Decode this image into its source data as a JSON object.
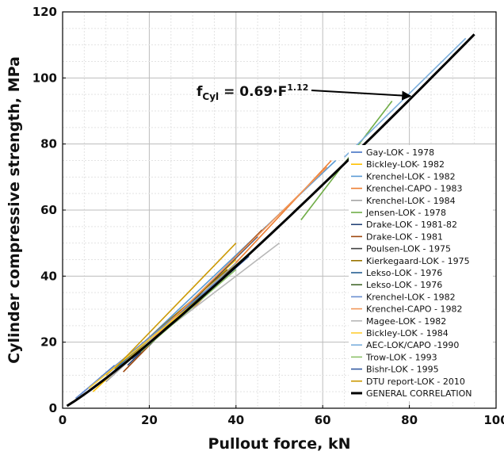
{
  "chart_data": {
    "type": "line",
    "xlabel": "Pullout force, kN",
    "ylabel": "Cylinder compressive strength, MPa",
    "xlim": [
      0,
      100
    ],
    "ylim": [
      0,
      120
    ],
    "xticks": [
      "0",
      "20",
      "40",
      "60",
      "80",
      "100"
    ],
    "yticks": [
      "0",
      "20",
      "40",
      "60",
      "80",
      "100",
      "120"
    ],
    "grid": true,
    "legend_position": "right",
    "annotation": {
      "prefix": "f",
      "subscript": "Cyl",
      "middle": " = 0.69·F",
      "superscript": "1.12",
      "arrow_to": [
        81,
        95
      ]
    },
    "series": [
      {
        "name": "Gay-LOK - 1978",
        "color": "#4472c4",
        "x": [
          4,
          12
        ],
        "y": [
          4,
          13
        ]
      },
      {
        "name": "Bickley-LOK- 1982",
        "color": "#ffc000",
        "x": [
          7,
          40
        ],
        "y": [
          5,
          45
        ]
      },
      {
        "name": "Krenchel-LOK - 1982",
        "color": "#5b9bd5",
        "x": [
          10,
          63
        ],
        "y": [
          9,
          75
        ]
      },
      {
        "name": "Krenchel-CAPO - 1983",
        "color": "#ed7d31",
        "x": [
          30,
          62
        ],
        "y": [
          30,
          75
        ]
      },
      {
        "name": "Krenchel-LOK - 1984",
        "color": "#a5a5a5",
        "x": [
          10,
          40
        ],
        "y": [
          8,
          44
        ]
      },
      {
        "name": "Jensen-LOK - 1978",
        "color": "#70ad47",
        "x": [
          55,
          76
        ],
        "y": [
          57,
          93
        ]
      },
      {
        "name": "Drake-LOK - 1981-82",
        "color": "#264478",
        "x": [
          15,
          45
        ],
        "y": [
          13,
          52
        ]
      },
      {
        "name": "Drake-LOK - 1981",
        "color": "#9e480e",
        "x": [
          14,
          46
        ],
        "y": [
          11,
          54
        ]
      },
      {
        "name": "Poulsen-LOK - 1975",
        "color": "#404040",
        "x": [
          20,
          47
        ],
        "y": [
          19,
          55
        ]
      },
      {
        "name": "Kierkegaard-LOK - 1975",
        "color": "#997300",
        "x": [
          10,
          38
        ],
        "y": [
          10,
          42
        ]
      },
      {
        "name": "Lekso-LOK - 1976",
        "color": "#255e91",
        "x": [
          12,
          42
        ],
        "y": [
          12,
          45
        ]
      },
      {
        "name": "Lekso-LOK - 1976",
        "color": "#43682b",
        "x": [
          14,
          44
        ],
        "y": [
          13,
          48
        ]
      },
      {
        "name": "Krenchel-LOK - 1982",
        "color": "#698ed0",
        "x": [
          3,
          40
        ],
        "y": [
          3,
          43
        ]
      },
      {
        "name": "Krenchel-CAPO - 1982",
        "color": "#f1975a",
        "x": [
          20,
          61
        ],
        "y": [
          20,
          73
        ]
      },
      {
        "name": "Magee-LOK - 1982",
        "color": "#b7b7b7",
        "x": [
          25,
          50
        ],
        "y": [
          25,
          50
        ]
      },
      {
        "name": "Bickley-LOK - 1984",
        "color": "#ffcd33",
        "x": [
          6,
          38
        ],
        "y": [
          6,
          40
        ]
      },
      {
        "name": "AEC-LOK/CAPO -1990",
        "color": "#7cafdd",
        "x": [
          65,
          93
        ],
        "y": [
          76,
          112
        ]
      },
      {
        "name": "Trow-LOK - 1993",
        "color": "#8cc168",
        "x": [
          18,
          40
        ],
        "y": [
          17,
          42
        ]
      },
      {
        "name": "Bishr-LOK - 1995",
        "color": "#335aa1",
        "x": [
          16,
          43
        ],
        "y": [
          15,
          46
        ]
      },
      {
        "name": "DTU report-LOK - 2010",
        "color": "#cc9a06",
        "x": [
          12,
          40
        ],
        "y": [
          12,
          50
        ]
      },
      {
        "name": "GENERAL CORRELATION",
        "color": "#000000",
        "x": [
          1,
          95
        ],
        "y": [
          0.69,
          113.1
        ],
        "general": true
      }
    ]
  }
}
